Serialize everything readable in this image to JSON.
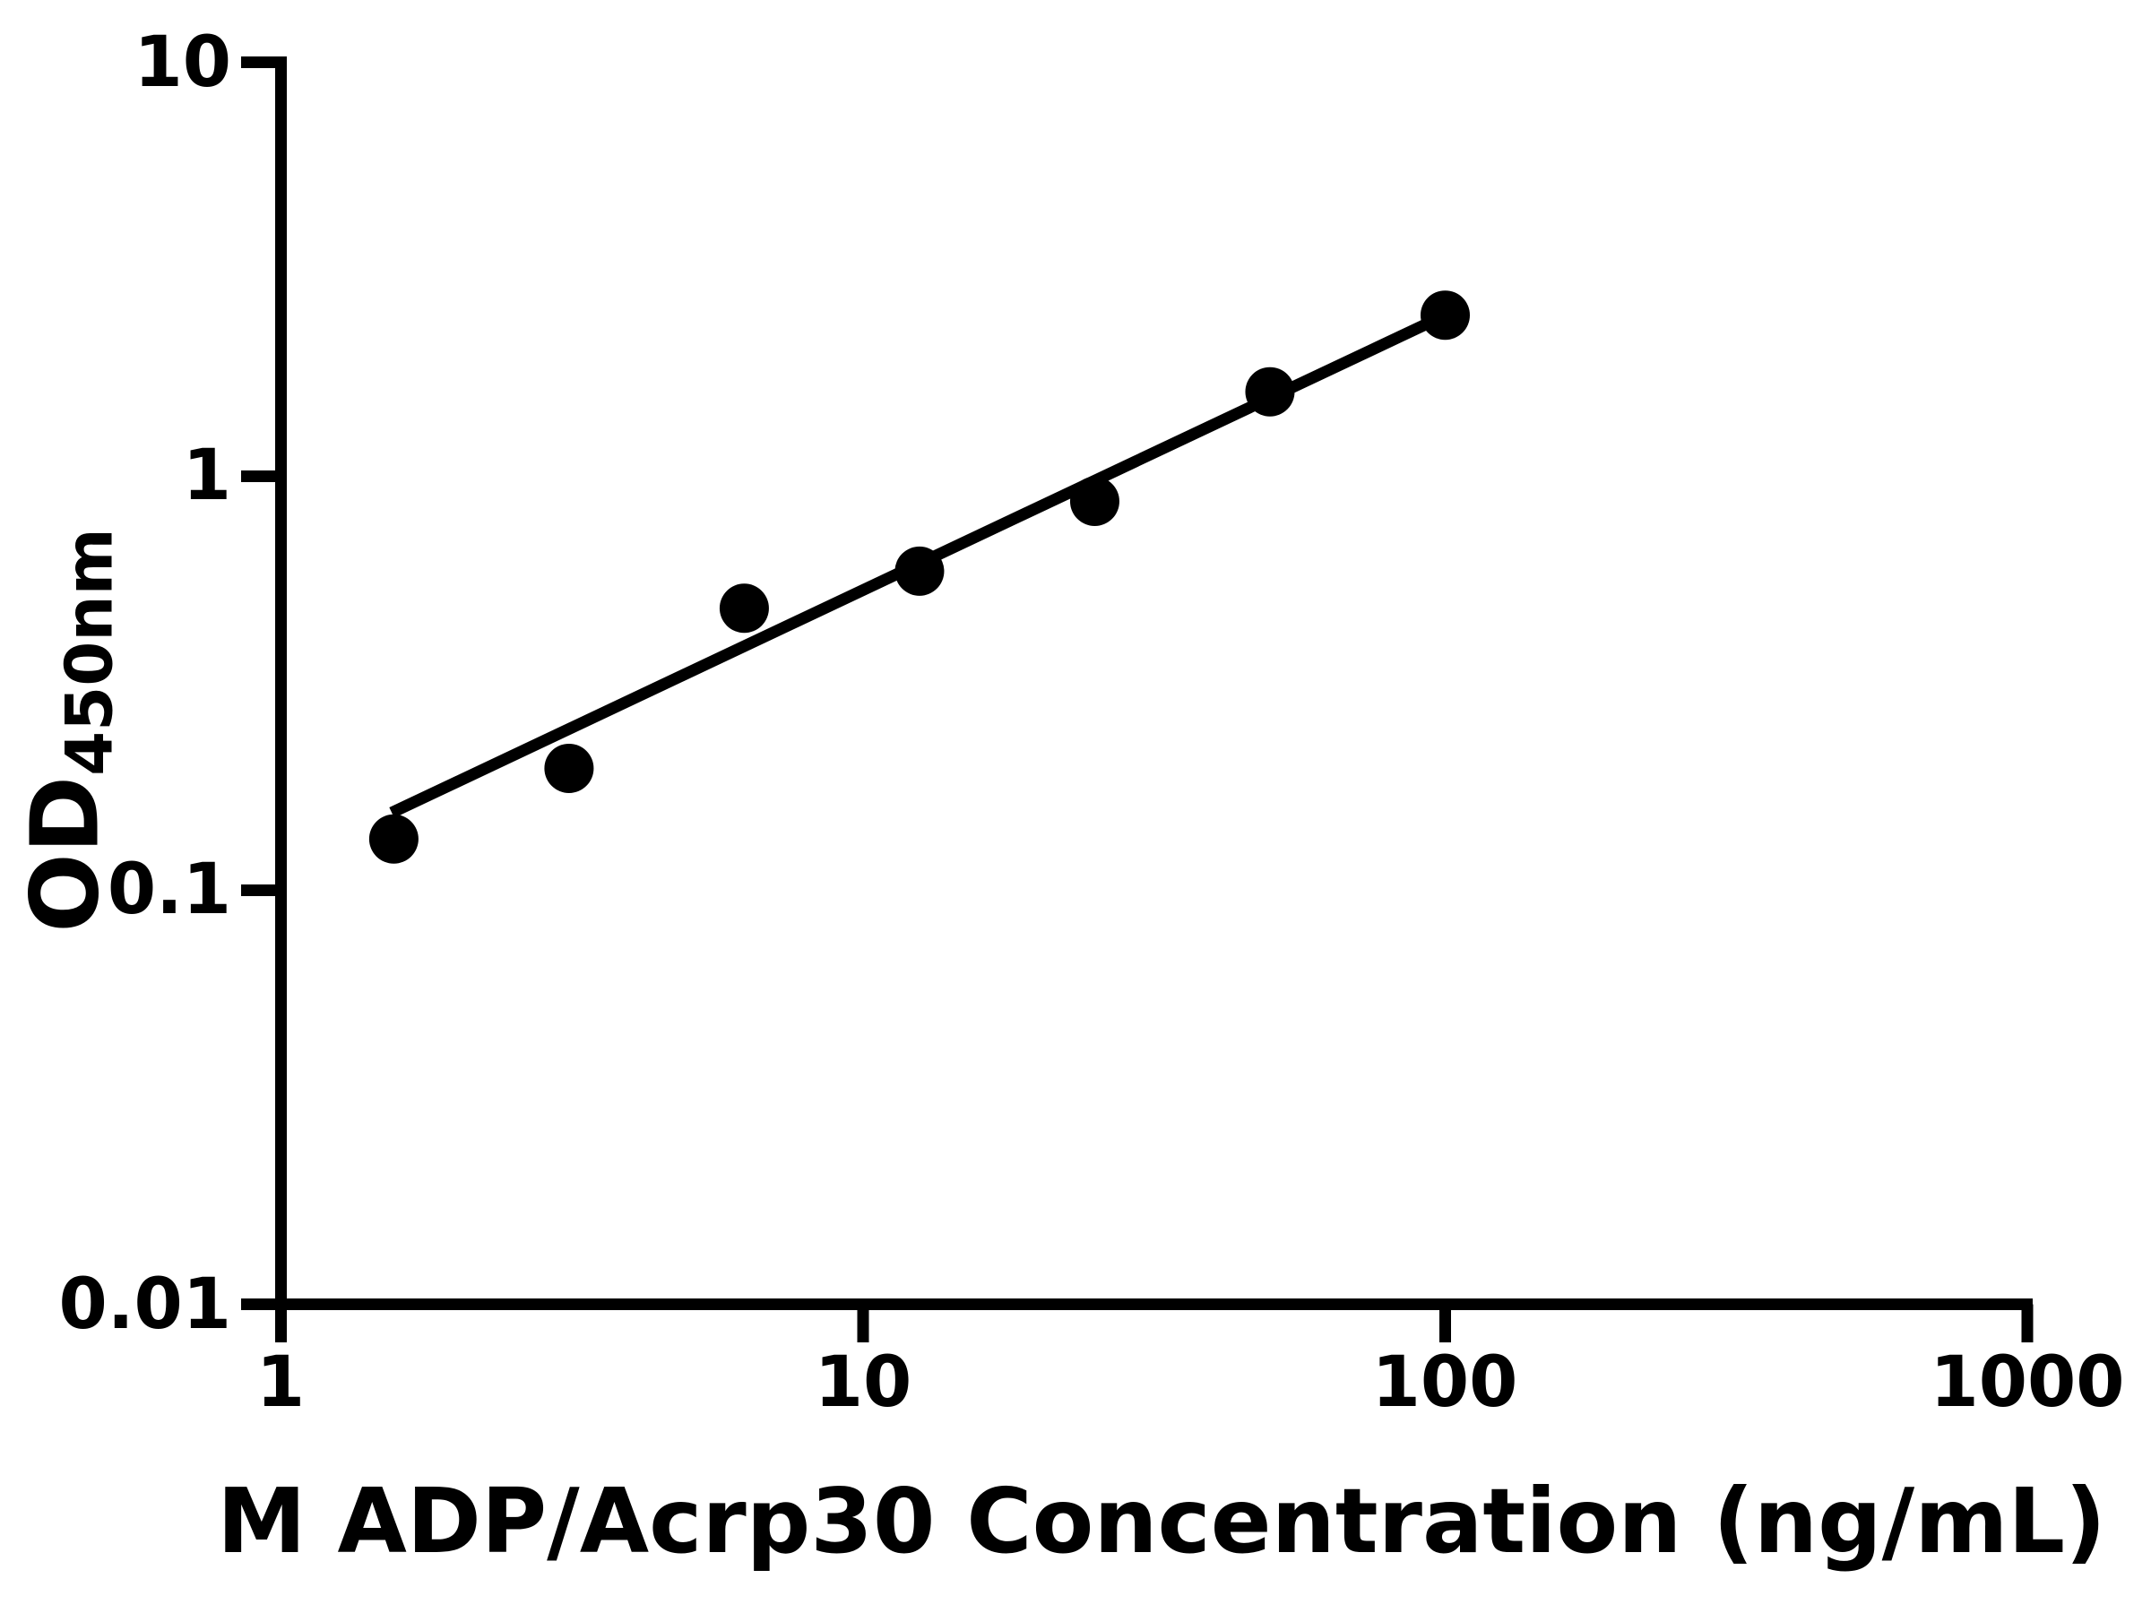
{
  "chart_data": {
    "type": "scatter",
    "title": "",
    "xlabel": "M ADP/Acrp30 Concentration (ng/mL)",
    "ylabel": "OD450nm",
    "ylabel_main": "OD",
    "ylabel_sub": "450nm",
    "x_scale": "log10",
    "y_scale": "log10",
    "xlim": [
      1,
      1000
    ],
    "ylim": [
      0.01,
      10
    ],
    "x_tick_values": [
      1,
      10,
      100,
      1000
    ],
    "x_tick_labels": [
      "1",
      "10",
      "100",
      "1000"
    ],
    "y_tick_values": [
      10,
      1,
      0.1,
      0.01
    ],
    "y_tick_labels": [
      "10",
      "1",
      "0.1",
      "0.01"
    ],
    "grid": false,
    "legend": false,
    "foreground_color": "#000000",
    "background_color": "#ffffff",
    "series": [
      {
        "name": "standard-fit-line",
        "type": "line",
        "color": "#000000",
        "stroke_px": 13,
        "x": [
          1.55,
          100
        ],
        "y": [
          0.154,
          2.45
        ]
      },
      {
        "name": "standard-data-points",
        "type": "scatter",
        "color": "#000000",
        "marker": "circle",
        "marker_diameter_px": 55,
        "x": [
          1.5625,
          3.125,
          6.25,
          12.5,
          25,
          50,
          100
        ],
        "y": [
          0.133,
          0.197,
          0.48,
          0.59,
          0.87,
          1.6,
          2.45
        ]
      }
    ]
  }
}
